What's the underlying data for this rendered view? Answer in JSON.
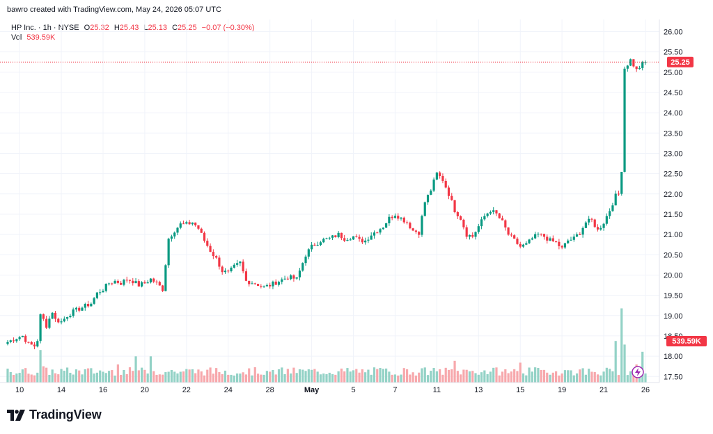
{
  "header": {
    "credit": "bawro created with TradingView.com, May 24, 2026 05:07 UTC"
  },
  "legend": {
    "symbol": "HP Inc. · 1h · NYSE",
    "open_label": "O",
    "open": "25.32",
    "high_label": "H",
    "high": "25.43",
    "low_label": "L",
    "low": "25.13",
    "close_label": "C",
    "close": "25.25",
    "change": "−0.07 (−0.30%)",
    "vol_label": "Vol",
    "vol": "539.59K"
  },
  "footer": {
    "brand": "TradingView"
  },
  "colors": {
    "up": "#089981",
    "down": "#f23645",
    "vol_up": "#93d2c6",
    "vol_down": "#f7a8ac",
    "grid": "#f0f3fa"
  },
  "chart_data": {
    "type": "candlestick",
    "title": "HP Inc. · 1h · NYSE",
    "y_ticks": [
      17.5,
      18.0,
      18.5,
      19.0,
      19.5,
      20.0,
      20.5,
      21.0,
      21.5,
      22.0,
      22.5,
      23.0,
      23.5,
      24.0,
      24.5,
      25.0,
      25.5,
      26.0
    ],
    "y_tick_labels": [
      "17.50",
      "18.00",
      "18.50",
      "19.00",
      "19.50",
      "20.00",
      "20.50",
      "21.00",
      "21.50",
      "22.00",
      "22.50",
      "23.00",
      "23.50",
      "24.00",
      "24.50",
      "25.00",
      "25.50",
      "26.00"
    ],
    "ylim": [
      17.35,
      26.3
    ],
    "x_ticks": [
      {
        "label": "10",
        "index": 4,
        "bold": false
      },
      {
        "label": "14",
        "index": 18,
        "bold": false
      },
      {
        "label": "16",
        "index": 32,
        "bold": false
      },
      {
        "label": "20",
        "index": 46,
        "bold": false
      },
      {
        "label": "22",
        "index": 60,
        "bold": false
      },
      {
        "label": "24",
        "index": 74,
        "bold": false
      },
      {
        "label": "28",
        "index": 88,
        "bold": false
      },
      {
        "label": "May",
        "index": 102,
        "bold": true
      },
      {
        "label": "5",
        "index": 116,
        "bold": false
      },
      {
        "label": "7",
        "index": 130,
        "bold": false
      },
      {
        "label": "11",
        "index": 144,
        "bold": false
      },
      {
        "label": "13",
        "index": 158,
        "bold": false
      },
      {
        "label": "15",
        "index": 172,
        "bold": false
      },
      {
        "label": "19",
        "index": 186,
        "bold": false
      },
      {
        "label": "21",
        "index": 200,
        "bold": false
      },
      {
        "label": "26",
        "index": 214,
        "bold": false
      }
    ],
    "last_price": 25.25,
    "last_price_label": "25.25",
    "last_volume_label": "539.59K",
    "anchors": [
      [
        0,
        18.35
      ],
      [
        3,
        18.45
      ],
      [
        5,
        18.5
      ],
      [
        7,
        18.3
      ],
      [
        9,
        18.25
      ],
      [
        10,
        18.4
      ],
      [
        11,
        19.0
      ],
      [
        12,
        18.9
      ],
      [
        13,
        18.75
      ],
      [
        15,
        19.1
      ],
      [
        16,
        18.9
      ],
      [
        18,
        18.85
      ],
      [
        20,
        19.0
      ],
      [
        22,
        19.1
      ],
      [
        25,
        19.2
      ],
      [
        28,
        19.3
      ],
      [
        30,
        19.55
      ],
      [
        32,
        19.65
      ],
      [
        34,
        19.8
      ],
      [
        36,
        19.85
      ],
      [
        38,
        19.8
      ],
      [
        40,
        19.9
      ],
      [
        42,
        19.85
      ],
      [
        44,
        19.75
      ],
      [
        46,
        19.8
      ],
      [
        48,
        19.9
      ],
      [
        50,
        19.8
      ],
      [
        52,
        19.65
      ],
      [
        54,
        20.9
      ],
      [
        56,
        21.1
      ],
      [
        58,
        21.25
      ],
      [
        60,
        21.25
      ],
      [
        62,
        21.3
      ],
      [
        64,
        21.15
      ],
      [
        66,
        20.85
      ],
      [
        68,
        20.6
      ],
      [
        70,
        20.4
      ],
      [
        72,
        20.1
      ],
      [
        74,
        20.05
      ],
      [
        76,
        20.2
      ],
      [
        78,
        20.3
      ],
      [
        80,
        19.85
      ],
      [
        83,
        19.8
      ],
      [
        86,
        19.7
      ],
      [
        88,
        19.75
      ],
      [
        91,
        19.85
      ],
      [
        94,
        19.95
      ],
      [
        97,
        19.9
      ],
      [
        100,
        20.5
      ],
      [
        102,
        20.7
      ],
      [
        105,
        20.85
      ],
      [
        108,
        20.9
      ],
      [
        111,
        21.0
      ],
      [
        113,
        20.9
      ],
      [
        116,
        20.95
      ],
      [
        118,
        20.85
      ],
      [
        120,
        20.85
      ],
      [
        122,
        21.0
      ],
      [
        124,
        21.1
      ],
      [
        126,
        21.2
      ],
      [
        128,
        21.4
      ],
      [
        130,
        21.5
      ],
      [
        132,
        21.4
      ],
      [
        134,
        21.3
      ],
      [
        136,
        21.1
      ],
      [
        138,
        21.05
      ],
      [
        140,
        21.8
      ],
      [
        142,
        22.1
      ],
      [
        144,
        22.5
      ],
      [
        146,
        22.35
      ],
      [
        148,
        22.0
      ],
      [
        150,
        21.6
      ],
      [
        152,
        21.4
      ],
      [
        154,
        21.0
      ],
      [
        156,
        20.95
      ],
      [
        158,
        21.2
      ],
      [
        160,
        21.45
      ],
      [
        162,
        21.6
      ],
      [
        164,
        21.5
      ],
      [
        166,
        21.3
      ],
      [
        168,
        21.0
      ],
      [
        170,
        20.85
      ],
      [
        172,
        20.7
      ],
      [
        174,
        20.75
      ],
      [
        176,
        20.9
      ],
      [
        178,
        21.0
      ],
      [
        180,
        20.95
      ],
      [
        182,
        20.85
      ],
      [
        184,
        20.8
      ],
      [
        186,
        20.65
      ],
      [
        188,
        20.85
      ],
      [
        190,
        20.9
      ],
      [
        192,
        21.05
      ],
      [
        194,
        21.3
      ],
      [
        196,
        21.35
      ],
      [
        198,
        21.1
      ],
      [
        200,
        21.3
      ],
      [
        202,
        21.6
      ],
      [
        204,
        21.95
      ],
      [
        205,
        22.0
      ],
      [
        206,
        22.6
      ],
      [
        207,
        25.1
      ],
      [
        209,
        25.3
      ],
      [
        211,
        25.05
      ],
      [
        213,
        25.2
      ],
      [
        214,
        25.25
      ]
    ],
    "volume_spikes": [
      [
        11,
        1.8
      ],
      [
        12,
        0.9
      ],
      [
        37,
        1.0
      ],
      [
        43,
        1.45
      ],
      [
        48,
        1.45
      ],
      [
        88,
        0.6
      ],
      [
        150,
        1.2
      ],
      [
        172,
        1.1
      ],
      [
        204,
        2.3
      ],
      [
        206,
        4.1
      ],
      [
        207,
        2.1
      ],
      [
        211,
        1.0
      ],
      [
        213,
        1.7
      ]
    ]
  }
}
